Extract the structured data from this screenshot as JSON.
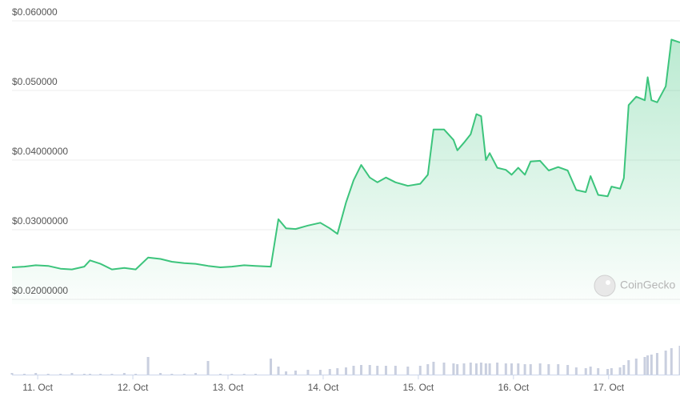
{
  "chart_data": {
    "type": "line",
    "watermark": "CoinGecko",
    "x": [
      10.73,
      10.86,
      10.98,
      11.11,
      11.24,
      11.36,
      11.49,
      11.55,
      11.66,
      11.78,
      11.91,
      12.03,
      12.16,
      12.29,
      12.41,
      12.54,
      12.66,
      12.79,
      12.92,
      13.04,
      13.17,
      13.29,
      13.45,
      13.53,
      13.61,
      13.71,
      13.84,
      13.97,
      14.07,
      14.15,
      14.24,
      14.32,
      14.4,
      14.49,
      14.57,
      14.66,
      14.76,
      14.89,
      15.02,
      15.1,
      15.16,
      15.27,
      15.37,
      15.41,
      15.48,
      15.55,
      15.61,
      15.66,
      15.71,
      15.75,
      15.83,
      15.92,
      15.98,
      16.05,
      16.12,
      16.18,
      16.28,
      16.37,
      16.47,
      16.57,
      16.66,
      16.76,
      16.81,
      16.89,
      16.99,
      17.03,
      17.12,
      17.16,
      17.21,
      17.29,
      17.38,
      17.41,
      17.45,
      17.51,
      17.6,
      17.66,
      17.75
    ],
    "series": [
      {
        "color": "#3cc47c",
        "values": [
          0.0246,
          0.0247,
          0.0249,
          0.0248,
          0.0244,
          0.0243,
          0.0247,
          0.0256,
          0.0251,
          0.0243,
          0.0245,
          0.0243,
          0.026,
          0.0258,
          0.0254,
          0.0252,
          0.0251,
          0.0248,
          0.0246,
          0.0247,
          0.0249,
          0.0248,
          0.0247,
          0.0315,
          0.0302,
          0.0301,
          0.0306,
          0.031,
          0.0302,
          0.0294,
          0.0339,
          0.0371,
          0.0393,
          0.0375,
          0.0368,
          0.0375,
          0.0368,
          0.0363,
          0.0366,
          0.0379,
          0.0444,
          0.0444,
          0.0429,
          0.0414,
          0.0425,
          0.0437,
          0.0466,
          0.0463,
          0.04,
          0.041,
          0.0389,
          0.0386,
          0.0379,
          0.0389,
          0.0379,
          0.0398,
          0.0399,
          0.0385,
          0.039,
          0.0385,
          0.0357,
          0.0354,
          0.0377,
          0.035,
          0.0348,
          0.0362,
          0.0359,
          0.0374,
          0.0479,
          0.0491,
          0.0486,
          0.0519,
          0.0486,
          0.0483,
          0.0506,
          0.0573,
          0.0569
        ]
      },
      {
        "type": "bar",
        "axis": "y2",
        "color": "#c9cfdf",
        "values": [
          2,
          1,
          2,
          1,
          1,
          2,
          1,
          1,
          1,
          1,
          2,
          1,
          22,
          2,
          1,
          1,
          2,
          17,
          1,
          1,
          1,
          1,
          20,
          10,
          4,
          5,
          6,
          6,
          7,
          8,
          9,
          11,
          12,
          12,
          11,
          11,
          11,
          10,
          11,
          13,
          16,
          15,
          14,
          13,
          14,
          15,
          14,
          15,
          14,
          14,
          15,
          14,
          14,
          14,
          13,
          13,
          14,
          13,
          13,
          12,
          9,
          8,
          10,
          8,
          7,
          8,
          9,
          12,
          18,
          20,
          22,
          24,
          25,
          27,
          30,
          33,
          36
        ]
      }
    ],
    "xlim": [
      10.73,
      17.75
    ],
    "xticks": [
      {
        "value": 11,
        "label": "11. Oct"
      },
      {
        "value": 12,
        "label": "12. Oct"
      },
      {
        "value": 13,
        "label": "13. Oct"
      },
      {
        "value": 14,
        "label": "14. Oct"
      },
      {
        "value": 15,
        "label": "15. Oct"
      },
      {
        "value": 16,
        "label": "16. Oct"
      },
      {
        "value": 17,
        "label": "17. Oct"
      }
    ],
    "ylim": [
      0.02,
      0.06
    ],
    "yticks": [
      {
        "value": 0.02,
        "label": "$0.02000000"
      },
      {
        "value": 0.03,
        "label": "$0.03000000"
      },
      {
        "value": 0.04,
        "label": "$0.04000000"
      },
      {
        "value": 0.05,
        "label": "$0.050000"
      },
      {
        "value": 0.06,
        "label": "$0.060000"
      }
    ],
    "y2lim": [
      0,
      50
    ],
    "grid": true
  }
}
